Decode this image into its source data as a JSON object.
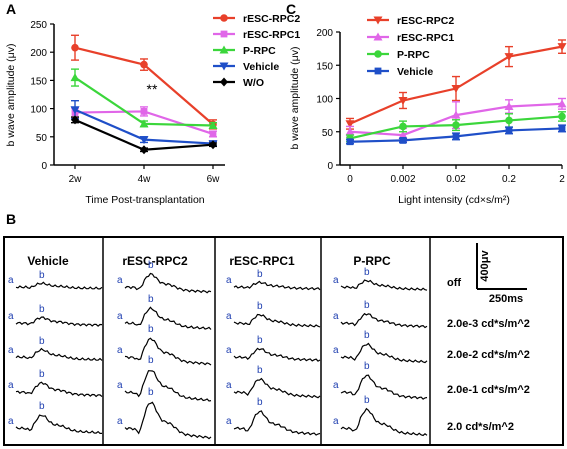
{
  "panels": {
    "a_label": "A",
    "b_label": "B",
    "c_label": "C"
  },
  "colors": {
    "rESC-RPC2": "#e8402a",
    "rESC-RPC1": "#e066e8",
    "P-RPC": "#3bd63b",
    "Vehicle": "#1f4fc8",
    "W/O": "#000000",
    "trace": "#000000",
    "wave_label": "#1f3fb0"
  },
  "chart_data": [
    {
      "id": "A",
      "type": "line",
      "categories": [
        "2w",
        "4w",
        "6w"
      ],
      "xlabel": "Time Post-transplantation",
      "ylabel": "b wave amplitude (μv)",
      "ylim": [
        0,
        250
      ],
      "yticks": [
        0,
        50,
        100,
        150,
        200,
        250
      ],
      "legend_position": "top-right",
      "annotation": {
        "text": "**",
        "category": "4w"
      },
      "series": [
        {
          "name": "rESC-RPC2",
          "marker": "circle",
          "values": [
            208,
            178,
            72
          ],
          "err": [
            22,
            10,
            8
          ]
        },
        {
          "name": "rESC-RPC1",
          "marker": "square",
          "values": [
            93,
            95,
            55
          ],
          "err": [
            8,
            8,
            5
          ]
        },
        {
          "name": "P-RPC",
          "marker": "triangle-up",
          "values": [
            155,
            73,
            70
          ],
          "err": [
            15,
            5,
            5
          ]
        },
        {
          "name": "Vehicle",
          "marker": "triangle-down",
          "values": [
            98,
            45,
            38
          ],
          "err": [
            16,
            5,
            4
          ]
        },
        {
          "name": "W/O",
          "marker": "diamond",
          "values": [
            80,
            27,
            36
          ],
          "err": [
            5,
            3,
            3
          ]
        }
      ]
    },
    {
      "id": "C",
      "type": "line",
      "categories": [
        "0",
        "0.002",
        "0.02",
        "0.2",
        "2"
      ],
      "xlabel": "Light intensity (cd×s/m²)",
      "ylabel": "b wave amplitude (μv)",
      "ylim": [
        0,
        200
      ],
      "yticks": [
        0,
        50,
        100,
        150,
        200
      ],
      "legend_position": "top-left",
      "series": [
        {
          "name": "rESC-RPC2",
          "marker": "triangle-down",
          "values": [
            62,
            97,
            115,
            163,
            178
          ],
          "err": [
            8,
            12,
            18,
            15,
            10
          ]
        },
        {
          "name": "rESC-RPC1",
          "marker": "triangle-up",
          "values": [
            50,
            45,
            75,
            88,
            92
          ],
          "err": [
            8,
            10,
            20,
            10,
            8
          ]
        },
        {
          "name": "P-RPC",
          "marker": "circle",
          "values": [
            40,
            58,
            60,
            67,
            73
          ],
          "err": [
            5,
            8,
            8,
            10,
            7
          ]
        },
        {
          "name": "Vehicle",
          "marker": "square",
          "values": [
            35,
            37,
            43,
            52,
            55
          ],
          "err": [
            3,
            3,
            5,
            5,
            5
          ]
        }
      ]
    }
  ],
  "traces": {
    "groups": [
      "Vehicle",
      "rESC-RPC2",
      "rESC-RPC1",
      "P-RPC"
    ],
    "wave_a": "a",
    "wave_b": "b",
    "conditions": [
      "off",
      "2.0e-3 cd*s/m^2",
      "2.0e-2 cd*s/m^2",
      "2.0e-1 cd*s/m^2",
      "2.0 cd*s/m^2"
    ],
    "scale_amplitude": "400μv",
    "scale_time": "250ms"
  }
}
